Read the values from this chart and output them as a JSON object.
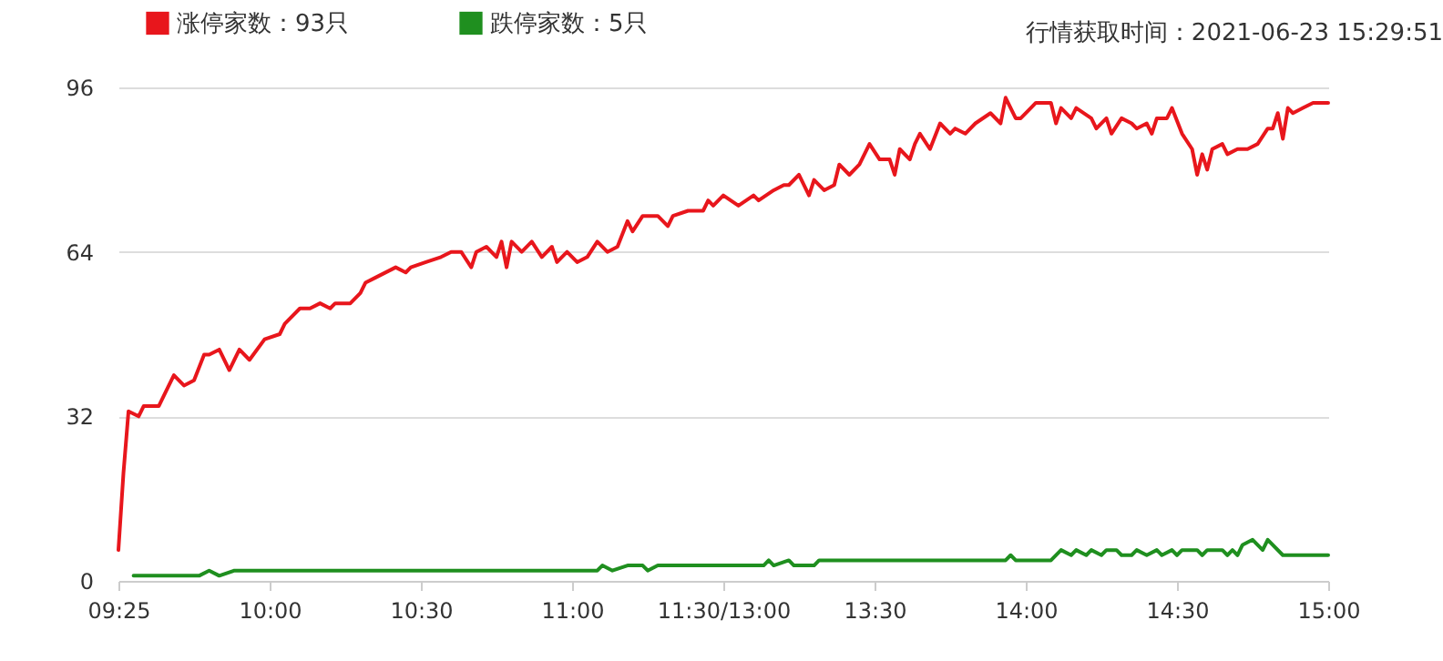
{
  "chart_data": {
    "type": "line",
    "annotations": [
      "行情获取时间：2021-06-23 15:29:51"
    ],
    "categories": [
      "09:25",
      null,
      null,
      null,
      null,
      null,
      null,
      null,
      null,
      null,
      null,
      null,
      null,
      null,
      null,
      null,
      null,
      null,
      null,
      null,
      null,
      null,
      null,
      null,
      null,
      null,
      null,
      null,
      null,
      null,
      "10:00",
      null,
      null,
      null,
      null,
      null,
      null,
      null,
      null,
      null,
      null,
      null,
      null,
      null,
      null,
      null,
      null,
      null,
      null,
      null,
      null,
      null,
      null,
      null,
      null,
      null,
      null,
      null,
      null,
      null,
      "10:30",
      null,
      null,
      null,
      null,
      null,
      null,
      null,
      null,
      null,
      null,
      null,
      null,
      null,
      null,
      null,
      null,
      null,
      null,
      null,
      null,
      null,
      null,
      null,
      null,
      null,
      null,
      null,
      null,
      null,
      "11:00",
      null,
      null,
      null,
      null,
      null,
      null,
      null,
      null,
      null,
      null,
      null,
      null,
      null,
      null,
      null,
      null,
      null,
      null,
      null,
      null,
      null,
      null,
      null,
      null,
      null,
      null,
      null,
      null,
      null,
      "11:30/13:00",
      null,
      null,
      null,
      null,
      null,
      null,
      null,
      null,
      null,
      null,
      null,
      null,
      null,
      null,
      null,
      null,
      null,
      null,
      null,
      null,
      null,
      null,
      null,
      null,
      null,
      null,
      null,
      null,
      null,
      "13:30",
      null,
      null,
      null,
      null,
      null,
      null,
      null,
      null,
      null,
      null,
      null,
      null,
      null,
      null,
      null,
      null,
      null,
      null,
      null,
      null,
      null,
      null,
      null,
      null,
      null,
      null,
      null,
      null,
      null,
      "14:00",
      null,
      null,
      null,
      null,
      null,
      null,
      null,
      null,
      null,
      null,
      null,
      null,
      null,
      null,
      null,
      null,
      null,
      null,
      null,
      null,
      null,
      null,
      null,
      null,
      null,
      null,
      null,
      null,
      null,
      "14:30",
      null,
      null,
      null,
      null,
      null,
      null,
      null,
      null,
      null,
      null,
      null,
      null,
      null,
      null,
      null,
      null,
      null,
      null,
      null,
      null,
      null,
      null,
      null,
      null,
      null,
      null,
      null,
      null,
      null,
      "15:00"
    ],
    "ylim": [
      0,
      96
    ],
    "yticks": [
      0,
      32,
      64,
      96
    ],
    "grid": "y",
    "legend": "top left",
    "line_style": "solid",
    "series": [
      {
        "name": "涨停家数：93只",
        "color": "#e8161c",
        "values": [
          6,
          21,
          33,
          null,
          32,
          34,
          null,
          34,
          34,
          null,
          38,
          40,
          null,
          38,
          null,
          39,
          null,
          44,
          44,
          null,
          45,
          null,
          41,
          null,
          45,
          null,
          43,
          null,
          null,
          47,
          null,
          null,
          48,
          50,
          null,
          null,
          53,
          null,
          53,
          null,
          54,
          null,
          53,
          54,
          null,
          null,
          54,
          null,
          56,
          58,
          null,
          59,
          null,
          null,
          null,
          61,
          null,
          60,
          61,
          null,
          null,
          62,
          null,
          null,
          63,
          null,
          64,
          null,
          64,
          null,
          61,
          64,
          null,
          65,
          null,
          63,
          66,
          61,
          66,
          null,
          64,
          null,
          66,
          null,
          63,
          null,
          65,
          62,
          null,
          64,
          null,
          62,
          null,
          63,
          null,
          66,
          null,
          64,
          null,
          65,
          null,
          70,
          68,
          null,
          71,
          null,
          null,
          71,
          null,
          69,
          71,
          null,
          null,
          72,
          null,
          null,
          72,
          74,
          73,
          null,
          75,
          null,
          null,
          73,
          null,
          null,
          75,
          74,
          null,
          null,
          76,
          null,
          77,
          77,
          null,
          79,
          null,
          75,
          78,
          null,
          76,
          null,
          77,
          81,
          null,
          79,
          null,
          81,
          null,
          85,
          null,
          82,
          null,
          82,
          79,
          84,
          null,
          82,
          85,
          87,
          null,
          84,
          null,
          89,
          null,
          87,
          88,
          null,
          87,
          null,
          89,
          null,
          null,
          91,
          null,
          89,
          94,
          null,
          90,
          90,
          null,
          92,
          93,
          null,
          null,
          93,
          89,
          92,
          null,
          90,
          92,
          null,
          null,
          90,
          88,
          null,
          90,
          87,
          null,
          90,
          null,
          89,
          88,
          null,
          89,
          87,
          90,
          null,
          90,
          92,
          null,
          87,
          null,
          84,
          79,
          83,
          80,
          84,
          null,
          85,
          83,
          null,
          84,
          null,
          84,
          null,
          85,
          null,
          88,
          88,
          91,
          86,
          92,
          91,
          null,
          92,
          null,
          93,
          93,
          null,
          93
        ]
      },
      {
        "name": "跌停家数：5只",
        "color": "#1f8f1f",
        "values": [
          null,
          null,
          null,
          1,
          null,
          null,
          null,
          null,
          null,
          null,
          null,
          null,
          null,
          null,
          null,
          null,
          1,
          null,
          2,
          null,
          1,
          null,
          null,
          2,
          null,
          null,
          null,
          null,
          null,
          null,
          null,
          null,
          null,
          null,
          null,
          null,
          null,
          null,
          null,
          null,
          null,
          null,
          null,
          null,
          null,
          null,
          null,
          null,
          null,
          null,
          null,
          null,
          null,
          null,
          null,
          null,
          null,
          null,
          null,
          null,
          null,
          null,
          null,
          null,
          null,
          null,
          null,
          null,
          null,
          null,
          null,
          null,
          null,
          null,
          null,
          null,
          null,
          null,
          null,
          null,
          null,
          null,
          null,
          null,
          null,
          null,
          null,
          null,
          null,
          null,
          null,
          null,
          null,
          null,
          null,
          2,
          3,
          null,
          2,
          null,
          null,
          3,
          null,
          null,
          3,
          2,
          null,
          3,
          null,
          null,
          null,
          null,
          null,
          null,
          null,
          null,
          null,
          null,
          null,
          null,
          null,
          null,
          null,
          null,
          null,
          null,
          null,
          null,
          3,
          4,
          3,
          null,
          null,
          4,
          3,
          null,
          null,
          null,
          3,
          4,
          null,
          null,
          null,
          4,
          null,
          null,
          null,
          null,
          null,
          null,
          null,
          null,
          null,
          null,
          null,
          null,
          null,
          null,
          null,
          null,
          null,
          null,
          null,
          null,
          null,
          null,
          null,
          null,
          null,
          null,
          null,
          null,
          null,
          null,
          null,
          null,
          4,
          5,
          4,
          null,
          null,
          null,
          null,
          null,
          null,
          4,
          null,
          6,
          null,
          5,
          6,
          null,
          5,
          6,
          null,
          5,
          6,
          null,
          6,
          5,
          null,
          5,
          6,
          null,
          5,
          null,
          6,
          5,
          null,
          6,
          5,
          6,
          null,
          null,
          6,
          5,
          6,
          null,
          null,
          6,
          5,
          6,
          5,
          7,
          null,
          8,
          null,
          6,
          8,
          null,
          null,
          5,
          null,
          null,
          null,
          null,
          null,
          null,
          null,
          null,
          5
        ]
      }
    ]
  }
}
